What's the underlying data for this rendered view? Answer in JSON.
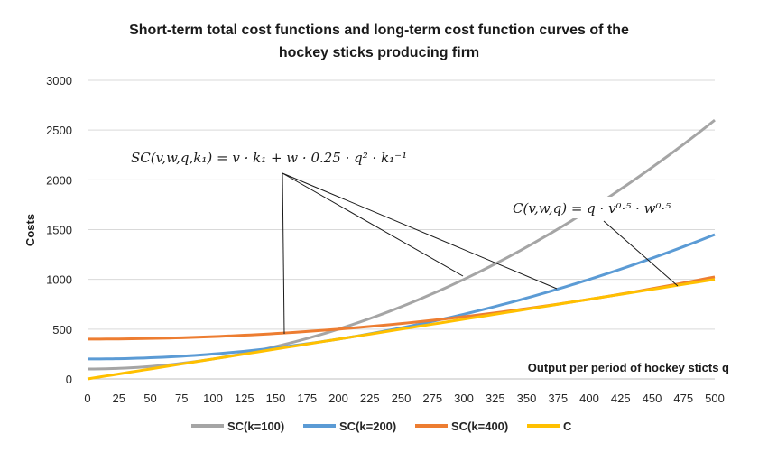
{
  "chart_data": {
    "type": "line",
    "title_line1": "Short-term total cost functions and long-term cost function curves of the",
    "title_line2": "hockey sticks producing firm",
    "xlabel": "Output per period of hockey sticts q",
    "ylabel": "Costs",
    "xlim": [
      0,
      500
    ],
    "ylim": [
      0,
      3000
    ],
    "x_ticks": [
      "0",
      "25",
      "50",
      "75",
      "100",
      "125",
      "150",
      "175",
      "200",
      "225",
      "250",
      "275",
      "300",
      "325",
      "350",
      "375",
      "400",
      "425",
      "450",
      "475",
      "500"
    ],
    "y_ticks": [
      "0",
      "500",
      "1000",
      "1500",
      "2000",
      "2500",
      "3000"
    ],
    "grid": "horizontal",
    "legend_position": "bottom",
    "series": [
      {
        "name": "SC(k=100)",
        "color": "#a5a5a5",
        "k": 100
      },
      {
        "name": "SC(k=200)",
        "color": "#5b9bd5",
        "k": 200
      },
      {
        "name": "SC(k=400)",
        "color": "#ed7d31",
        "k": 400
      },
      {
        "name": "C",
        "color": "#ffc000"
      }
    ],
    "annotations": [
      {
        "text": "SC(v,w,q,k₁) = v · k₁ + w · 0.25 · q² · k₁⁻¹"
      },
      {
        "text": "C(v,w,q) = q · v⁰·⁵ · w⁰·⁵"
      }
    ]
  }
}
